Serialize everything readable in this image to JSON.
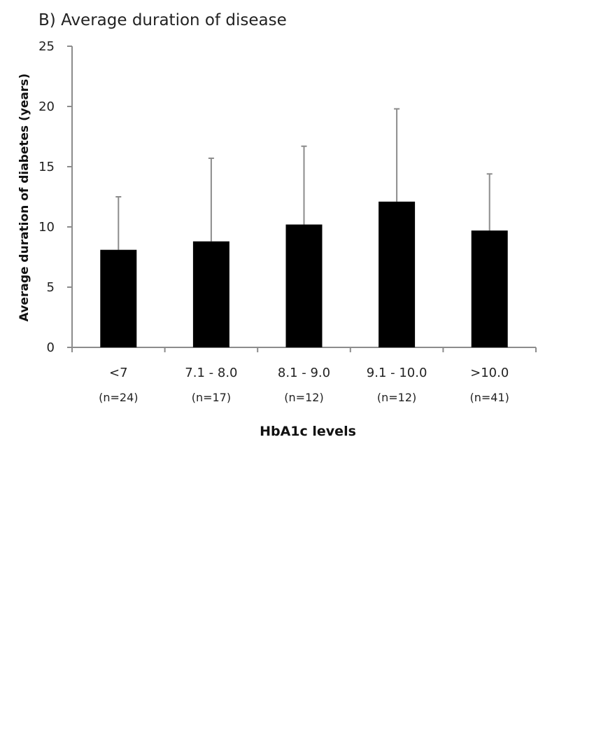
{
  "chart_data": {
    "type": "bar",
    "title": "B) Average duration of disease",
    "xlabel": "HbA1c levels",
    "ylabel": "Average duration of diabetes (years)",
    "categories": [
      "<7",
      "7.1 - 8.0",
      "8.1 - 9.0",
      "9.1 - 10.0",
      ">10.0"
    ],
    "sample_sizes": [
      "(n=24)",
      "(n=17)",
      "(n=12)",
      "(n=12)",
      "(n=41)"
    ],
    "values": [
      8.1,
      8.8,
      10.2,
      12.1,
      9.7
    ],
    "error_upper": [
      12.5,
      15.7,
      16.7,
      19.8,
      14.4
    ],
    "ylim": [
      0,
      25
    ],
    "yticks": [
      0,
      5,
      10,
      15,
      20,
      25
    ],
    "grid": false,
    "legend": "none",
    "colors": {
      "bar": "#000000",
      "error_bar": "#8c8c8c",
      "axis": "#8c8c8c"
    }
  }
}
